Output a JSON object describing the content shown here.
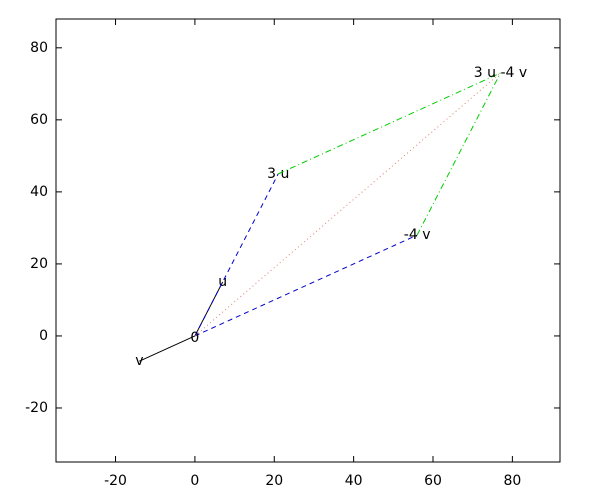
{
  "chart_data": {
    "type": "vector",
    "xlim": [
      -35,
      92
    ],
    "ylim": [
      -35,
      88
    ],
    "xticks": [
      -20,
      0,
      20,
      40,
      60,
      80
    ],
    "yticks": [
      -20,
      0,
      20,
      40,
      60,
      80
    ],
    "annotations": [
      {
        "text": "0",
        "x": 0,
        "y": 0
      }
    ],
    "vectors": [
      {
        "name": "u",
        "x": [
          0,
          7
        ],
        "y": [
          0,
          15
        ],
        "color": "#000000",
        "style": "solid"
      },
      {
        "name": "v",
        "x": [
          0,
          -14
        ],
        "y": [
          0,
          -7
        ],
        "color": "#000000",
        "style": "solid"
      },
      {
        "name": "3 u",
        "x": [
          0,
          21
        ],
        "y": [
          0,
          45
        ],
        "color": "#0000cc",
        "style": "dashed"
      },
      {
        "name": "-4 v",
        "x": [
          0,
          56
        ],
        "y": [
          0,
          28
        ],
        "color": "#0000cc",
        "style": "dashed"
      },
      {
        "x": [
          21,
          77
        ],
        "y": [
          45,
          73
        ],
        "color": "#00cc00",
        "style": "dashdot"
      },
      {
        "x": [
          56,
          77
        ],
        "y": [
          28,
          73
        ],
        "color": "#00cc00",
        "style": "dashdot"
      },
      {
        "name": "3 u -4 v",
        "x": [
          0,
          77
        ],
        "y": [
          0,
          73
        ],
        "color": "#e08070",
        "style": "dotted"
      }
    ]
  }
}
